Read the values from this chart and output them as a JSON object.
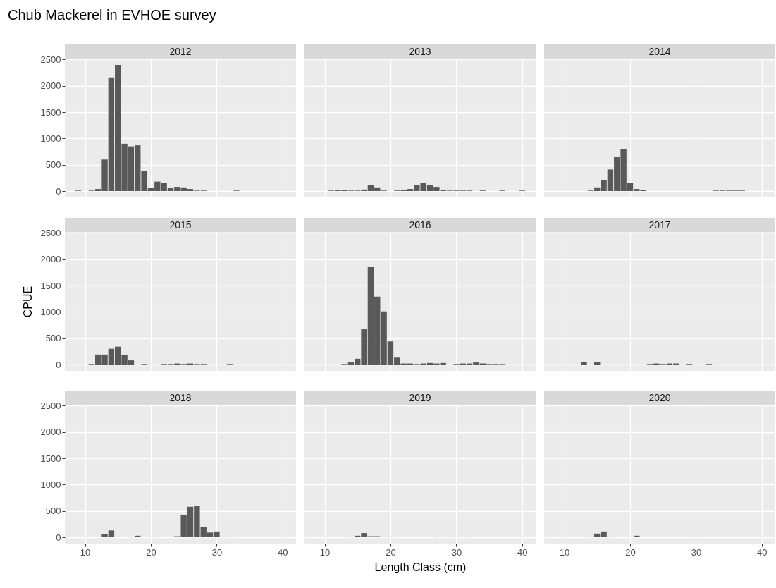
{
  "chart_data": [
    {
      "type": "bar",
      "title": "2012",
      "annotations": [
        "Chub Mackerel in EVHOE survey"
      ],
      "x": [
        9,
        11,
        12,
        13,
        14,
        15,
        16,
        17,
        18,
        19,
        20,
        21,
        22,
        23,
        24,
        25,
        26,
        27,
        28,
        33
      ],
      "values": [
        10,
        10,
        40,
        600,
        2160,
        2400,
        900,
        850,
        870,
        380,
        60,
        180,
        150,
        60,
        80,
        70,
        40,
        10,
        10,
        10
      ],
      "color": "#595959",
      "xlim": [
        6.95,
        42.05
      ],
      "ylim": [
        -120,
        2520
      ],
      "xticks": [
        10,
        20,
        30,
        40
      ],
      "yticks": [
        0,
        500,
        1000,
        1500,
        2000,
        2500
      ],
      "grid": true,
      "tick_labels": "y"
    },
    {
      "type": "bar",
      "title": "2013",
      "x": [
        11,
        12,
        13,
        14,
        15,
        16,
        17,
        18,
        19,
        21,
        22,
        23,
        24,
        25,
        26,
        27,
        28,
        29,
        30,
        31,
        32,
        34,
        37,
        40
      ],
      "values": [
        10,
        20,
        20,
        10,
        10,
        30,
        120,
        70,
        10,
        10,
        20,
        40,
        110,
        150,
        120,
        80,
        20,
        10,
        10,
        10,
        10,
        10,
        10,
        10
      ],
      "color": "#595959",
      "xlim": [
        6.95,
        42.05
      ],
      "ylim": [
        -120,
        2520
      ],
      "xticks": [
        10,
        20,
        30,
        40
      ],
      "yticks": [
        0,
        500,
        1000,
        1500,
        2000,
        2500
      ],
      "grid": true,
      "tick_labels": false
    },
    {
      "type": "bar",
      "title": "2014",
      "x": [
        14,
        15,
        16,
        17,
        18,
        19,
        20,
        21,
        22,
        33,
        34,
        35,
        36,
        37
      ],
      "values": [
        10,
        70,
        210,
        410,
        650,
        800,
        150,
        40,
        20,
        10,
        10,
        10,
        10,
        10
      ],
      "color": "#595959",
      "xlim": [
        6.95,
        42.05
      ],
      "ylim": [
        -120,
        2520
      ],
      "xticks": [
        10,
        20,
        30,
        40
      ],
      "yticks": [
        0,
        500,
        1000,
        1500,
        2000,
        2500
      ],
      "grid": true,
      "tick_labels": false
    },
    {
      "type": "bar",
      "title": "2015",
      "ylabel": "CPUE",
      "x": [
        11,
        12,
        13,
        14,
        15,
        16,
        17,
        19,
        22,
        23,
        24,
        25,
        26,
        27,
        28,
        32
      ],
      "values": [
        10,
        190,
        190,
        300,
        340,
        180,
        80,
        10,
        10,
        10,
        20,
        10,
        20,
        10,
        10,
        10
      ],
      "color": "#595959",
      "xlim": [
        6.95,
        42.05
      ],
      "ylim": [
        -120,
        2520
      ],
      "xticks": [
        10,
        20,
        30,
        40
      ],
      "yticks": [
        0,
        500,
        1000,
        1500,
        2000,
        2500
      ],
      "grid": true,
      "tick_labels": "y"
    },
    {
      "type": "bar",
      "title": "2016",
      "x": [
        13,
        14,
        15,
        16,
        17,
        18,
        19,
        20,
        21,
        22,
        23,
        24,
        25,
        26,
        27,
        28,
        30,
        31,
        32,
        33,
        34,
        35,
        36,
        37
      ],
      "values": [
        10,
        40,
        110,
        670,
        1860,
        1290,
        1010,
        440,
        130,
        20,
        20,
        10,
        20,
        30,
        20,
        30,
        10,
        20,
        20,
        40,
        20,
        10,
        10,
        10
      ],
      "color": "#595959",
      "xlim": [
        6.95,
        42.05
      ],
      "ylim": [
        -120,
        2520
      ],
      "xticks": [
        10,
        20,
        30,
        40
      ],
      "yticks": [
        0,
        500,
        1000,
        1500,
        2000,
        2500
      ],
      "grid": true,
      "tick_labels": false
    },
    {
      "type": "bar",
      "title": "2017",
      "x": [
        13,
        15,
        23,
        24,
        25,
        26,
        27,
        29,
        32
      ],
      "values": [
        50,
        40,
        10,
        20,
        10,
        20,
        20,
        10,
        10
      ],
      "color": "#595959",
      "xlim": [
        6.95,
        42.05
      ],
      "ylim": [
        -120,
        2520
      ],
      "xticks": [
        10,
        20,
        30,
        40
      ],
      "yticks": [
        0,
        500,
        1000,
        1500,
        2000,
        2500
      ],
      "grid": true,
      "tick_labels": false
    },
    {
      "type": "bar",
      "title": "2018",
      "x": [
        13,
        14,
        17,
        18,
        20,
        21,
        24,
        25,
        26,
        27,
        28,
        29,
        30,
        31,
        32
      ],
      "values": [
        60,
        130,
        10,
        30,
        10,
        10,
        20,
        430,
        580,
        590,
        200,
        90,
        110,
        10,
        10
      ],
      "color": "#595959",
      "xlim": [
        6.95,
        42.05
      ],
      "ylim": [
        -120,
        2520
      ],
      "xticks": [
        10,
        20,
        30,
        40
      ],
      "yticks": [
        0,
        500,
        1000,
        1500,
        2000,
        2500
      ],
      "grid": true
    },
    {
      "type": "bar",
      "title": "2019",
      "xlabel": "Length Class (cm)",
      "x": [
        14,
        15,
        16,
        17,
        18,
        19,
        20,
        27,
        29,
        30,
        32
      ],
      "values": [
        10,
        30,
        80,
        20,
        20,
        10,
        10,
        10,
        10,
        10,
        10
      ],
      "color": "#595959",
      "xlim": [
        6.95,
        42.05
      ],
      "ylim": [
        -120,
        2520
      ],
      "xticks": [
        10,
        20,
        30,
        40
      ],
      "yticks": [
        0,
        500,
        1000,
        1500,
        2000,
        2500
      ],
      "grid": true,
      "tick_labels": "x"
    },
    {
      "type": "bar",
      "title": "2020",
      "x": [
        14,
        15,
        16,
        17,
        21
      ],
      "values": [
        10,
        70,
        110,
        10,
        30
      ],
      "color": "#595959",
      "xlim": [
        6.95,
        42.05
      ],
      "ylim": [
        -120,
        2520
      ],
      "xticks": [
        10,
        20,
        30,
        40
      ],
      "yticks": [
        0,
        500,
        1000,
        1500,
        2000,
        2500
      ],
      "grid": true,
      "tick_labels": "x"
    }
  ]
}
